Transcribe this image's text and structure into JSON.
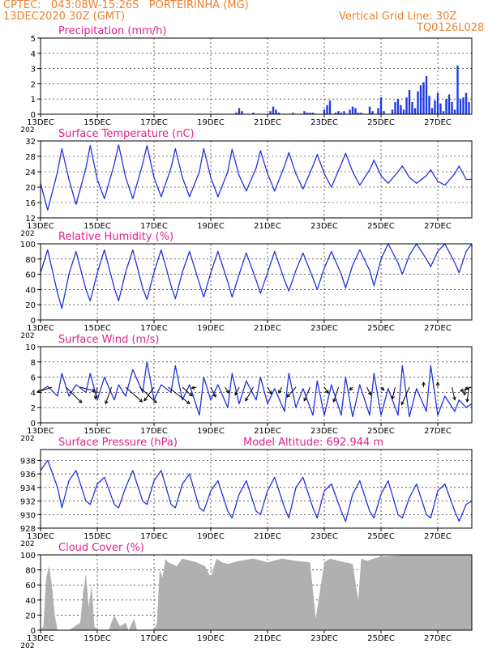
{
  "header": {
    "line1_left": "CPTEC:   043:08W-15:26S   PORTEIRINHA (MG)",
    "line2_left": "13DEC2020 30Z (GMT)",
    "line1_right": "Vertical Grid Line: 30Z",
    "line2_right": "TQ0126L028"
  },
  "colors": {
    "header": "#ee7f2d",
    "title": "#e0208a",
    "line": "#2233dd",
    "bars": "#1e3ce6",
    "cloud": "#b0b0b0",
    "arrow": "#000000"
  },
  "x_ticks": [
    "13DEC",
    "15DEC",
    "17DEC",
    "19DEC",
    "21DEC",
    "23DEC",
    "25DEC",
    "27DEC"
  ],
  "x_tick_days": [
    0,
    2,
    4,
    6,
    8,
    10,
    12,
    14
  ],
  "x_range_days": [
    0,
    15.2
  ],
  "year_fragment": "202",
  "chart_data": [
    {
      "id": "precip",
      "type": "bar",
      "title": "Precipitation (mm/h)",
      "ylim": [
        0,
        5
      ],
      "yticks": [
        0,
        1,
        2,
        3,
        4,
        5
      ],
      "grid": true,
      "days": [
        6.9,
        7.0,
        7.1,
        7.5,
        8.1,
        8.2,
        8.3,
        8.4,
        8.9,
        9.3,
        9.4,
        9.5,
        9.6,
        10.0,
        10.1,
        10.2,
        10.4,
        10.5,
        10.6,
        10.7,
        10.9,
        11.0,
        11.1,
        11.2,
        11.3,
        11.6,
        11.7,
        11.9,
        12.0,
        12.1,
        12.4,
        12.5,
        12.6,
        12.7,
        12.8,
        12.9,
        13.0,
        13.1,
        13.2,
        13.3,
        13.4,
        13.5,
        13.6,
        13.7,
        13.8,
        13.9,
        14.0,
        14.1,
        14.2,
        14.3,
        14.4,
        14.5,
        14.6,
        14.7,
        14.8,
        14.9,
        15.0,
        15.1
      ],
      "values": [
        0.1,
        0.4,
        0.2,
        0.1,
        0.2,
        0.5,
        0.3,
        0.1,
        0.1,
        0.2,
        0.1,
        0.1,
        0.1,
        0.3,
        0.6,
        0.9,
        0.1,
        0.2,
        0.1,
        0.2,
        0.3,
        0.5,
        0.4,
        0.1,
        0.1,
        0.5,
        0.2,
        0.4,
        1.1,
        0.2,
        0.3,
        0.8,
        1.0,
        0.6,
        0.3,
        1.1,
        1.6,
        0.8,
        0.4,
        1.5,
        1.9,
        2.1,
        2.5,
        1.2,
        0.4,
        0.9,
        1.4,
        0.7,
        0.2,
        1.0,
        1.3,
        0.8,
        0.3,
        3.2,
        1.0,
        1.1,
        1.4,
        0.8
      ]
    },
    {
      "id": "temp",
      "type": "line",
      "title": "Surface Temperature (nC)",
      "ylim": [
        12,
        32
      ],
      "yticks": [
        12,
        16,
        20,
        24,
        28,
        32
      ],
      "grid": true,
      "days": [
        0.0,
        0.25,
        0.6,
        0.75,
        1.0,
        1.25,
        1.6,
        1.75,
        2.0,
        2.25,
        2.6,
        2.75,
        3.0,
        3.25,
        3.6,
        3.75,
        4.0,
        4.25,
        4.6,
        4.75,
        5.0,
        5.25,
        5.6,
        5.75,
        6.0,
        6.25,
        6.6,
        6.75,
        7.0,
        7.25,
        7.6,
        7.75,
        8.0,
        8.25,
        8.6,
        8.75,
        9.0,
        9.25,
        9.6,
        9.75,
        10.0,
        10.25,
        10.6,
        10.75,
        11.0,
        11.25,
        11.6,
        11.75,
        12.0,
        12.25,
        12.6,
        12.75,
        13.0,
        13.25,
        13.6,
        13.75,
        14.0,
        14.25,
        14.6,
        14.75,
        15.0,
        15.2
      ],
      "values": [
        21.0,
        14.0,
        24.0,
        30.0,
        22.0,
        15.5,
        25.0,
        30.8,
        22.0,
        17.0,
        26.0,
        31.0,
        22.5,
        17.0,
        26.0,
        30.8,
        22.5,
        17.5,
        25.0,
        30.0,
        22.5,
        17.5,
        24.0,
        30.0,
        22.5,
        17.5,
        24.0,
        29.8,
        23.0,
        19.0,
        25.0,
        29.5,
        23.5,
        19.0,
        25.5,
        29.0,
        23.5,
        19.5,
        25.5,
        28.5,
        23.5,
        20.0,
        26.0,
        28.8,
        24.0,
        20.5,
        24.5,
        27.0,
        23.0,
        21.0,
        24.0,
        25.5,
        22.5,
        21.0,
        23.0,
        24.5,
        21.5,
        20.5,
        23.5,
        25.5,
        22.0,
        22.0
      ]
    },
    {
      "id": "rh",
      "type": "line",
      "title": "Relative Humidity (%)",
      "ylim": [
        0,
        100
      ],
      "yticks": [
        0,
        20,
        40,
        60,
        80,
        100
      ],
      "grid": true,
      "days": [
        0.0,
        0.25,
        0.6,
        0.75,
        1.0,
        1.25,
        1.6,
        1.75,
        2.0,
        2.25,
        2.6,
        2.75,
        3.0,
        3.25,
        3.6,
        3.75,
        4.0,
        4.25,
        4.6,
        4.75,
        5.0,
        5.25,
        5.6,
        5.75,
        6.0,
        6.25,
        6.6,
        6.75,
        7.0,
        7.25,
        7.6,
        7.75,
        8.0,
        8.25,
        8.6,
        8.75,
        9.0,
        9.25,
        9.6,
        9.75,
        10.0,
        10.25,
        10.6,
        10.75,
        11.0,
        11.25,
        11.6,
        11.75,
        12.0,
        12.25,
        12.6,
        12.75,
        13.0,
        13.25,
        13.6,
        13.75,
        14.0,
        14.25,
        14.6,
        14.75,
        15.0,
        15.2
      ],
      "values": [
        62.0,
        92.0,
        35.0,
        15.0,
        60.0,
        90.0,
        40.0,
        25.0,
        62.0,
        92.0,
        42.0,
        25.0,
        63.0,
        92.0,
        42.0,
        27.0,
        63.0,
        92.0,
        45.0,
        28.0,
        63.0,
        90.0,
        48.0,
        30.0,
        62.0,
        90.0,
        50.0,
        30.0,
        60.0,
        88.0,
        52.0,
        35.0,
        62.0,
        90.0,
        52.0,
        38.0,
        65.0,
        88.0,
        55.0,
        40.0,
        68.0,
        90.0,
        60.0,
        42.0,
        72.0,
        92.0,
        65.0,
        45.0,
        80.0,
        100.0,
        75.0,
        60.0,
        85.0,
        100.0,
        80.0,
        70.0,
        90.0,
        100.0,
        75.0,
        62.0,
        90.0,
        100.0
      ]
    },
    {
      "id": "wind",
      "type": "line",
      "title": "Surface Wind (m/s)",
      "ylim": [
        0,
        10
      ],
      "yticks": [
        0,
        2,
        4,
        6,
        8,
        10
      ],
      "grid": true,
      "days": [
        0.0,
        0.25,
        0.6,
        0.75,
        1.0,
        1.25,
        1.6,
        1.75,
        2.0,
        2.25,
        2.6,
        2.75,
        3.0,
        3.25,
        3.6,
        3.75,
        4.0,
        4.25,
        4.6,
        4.75,
        5.0,
        5.25,
        5.6,
        5.75,
        6.0,
        6.25,
        6.6,
        6.75,
        7.0,
        7.25,
        7.6,
        7.75,
        8.0,
        8.25,
        8.6,
        8.75,
        9.0,
        9.25,
        9.6,
        9.75,
        10.0,
        10.25,
        10.6,
        10.75,
        11.0,
        11.25,
        11.6,
        11.75,
        12.0,
        12.25,
        12.6,
        12.75,
        13.0,
        13.25,
        13.6,
        13.75,
        14.0,
        14.25,
        14.6,
        14.75,
        15.0,
        15.2
      ],
      "values": [
        4.2,
        4.8,
        3.5,
        6.5,
        3.5,
        5.0,
        4.0,
        6.5,
        3.0,
        6.0,
        3.0,
        5.0,
        3.5,
        7.0,
        4.0,
        8.0,
        3.0,
        5.0,
        4.0,
        7.5,
        3.0,
        5.0,
        1.0,
        6.0,
        3.0,
        5.0,
        2.0,
        6.5,
        2.5,
        5.5,
        3.0,
        6.0,
        2.5,
        4.5,
        1.5,
        6.5,
        2.0,
        4.5,
        1.0,
        5.5,
        1.0,
        5.0,
        1.0,
        6.0,
        0.8,
        5.0,
        1.0,
        6.5,
        1.0,
        4.5,
        1.0,
        7.5,
        0.8,
        4.5,
        1.5,
        7.5,
        1.0,
        3.5,
        1.5,
        3.0,
        2.0,
        2.5
      ],
      "arrows_u": [
        -1.5,
        1.6,
        1.5,
        -0.2,
        -0.6,
        1.7,
        1.7,
        -1.0,
        2.2,
        1.0,
        -0.5,
        0.5,
        0.4,
        -0.4,
        -0.8,
        0.4,
        -0.3,
        -0.9,
        -0.6,
        0.4,
        -0.5,
        -0.3,
        0.4,
        0.3,
        -0.3,
        -0.8,
        0.0,
        0.0,
        0.3,
        -0.2,
        -0.2,
        -0.5,
        -1.1
      ],
      "arrows_v": [
        0.5,
        1.6,
        0.4,
        1.2,
        1.7,
        1.5,
        1.6,
        1.4,
        1.7,
        0.9,
        0.1,
        1.0,
        0.6,
        0.8,
        1.4,
        0.7,
        0.6,
        1.0,
        1.4,
        0.6,
        1.5,
        0.3,
        0.8,
        0.3,
        1.2,
        1.8,
        -0.5,
        -0.5,
        1.3,
        0.8,
        1.5,
        0.2,
        0.4
      ],
      "arrows_days": [
        0.4,
        0.9,
        1.4,
        2.0,
        2.5,
        3.0,
        3.5,
        4.0,
        4.5,
        5.0,
        5.5,
        6.0,
        6.5,
        7.0,
        7.5,
        8.0,
        8.5,
        9.0,
        9.5,
        10.0,
        10.5,
        11.0,
        11.5,
        12.0,
        12.5,
        13.0,
        13.5,
        14.0,
        14.5,
        15.0,
        15.1,
        15.15,
        15.18
      ]
    },
    {
      "id": "pres",
      "type": "line",
      "title": "Surface Pressure (hPa)",
      "annotation": "Model Altitude: 692.944  m",
      "ylim": [
        928,
        939.6
      ],
      "yticks": [
        928,
        930,
        932,
        934,
        936,
        938
      ],
      "grid": true,
      "days": [
        0.0,
        0.25,
        0.6,
        0.75,
        1.0,
        1.25,
        1.6,
        1.75,
        2.0,
        2.25,
        2.6,
        2.75,
        3.0,
        3.25,
        3.6,
        3.75,
        4.0,
        4.25,
        4.6,
        4.75,
        5.0,
        5.25,
        5.6,
        5.75,
        6.0,
        6.25,
        6.6,
        6.75,
        7.0,
        7.25,
        7.6,
        7.75,
        8.0,
        8.25,
        8.6,
        8.75,
        9.0,
        9.25,
        9.6,
        9.75,
        10.0,
        10.25,
        10.6,
        10.75,
        11.0,
        11.25,
        11.6,
        11.75,
        12.0,
        12.25,
        12.6,
        12.75,
        13.0,
        13.25,
        13.6,
        13.75,
        14.0,
        14.25,
        14.6,
        14.75,
        15.0,
        15.2
      ],
      "values": [
        936.5,
        938.0,
        934.0,
        931.0,
        935.0,
        936.5,
        932.0,
        931.5,
        934.5,
        935.5,
        931.5,
        931.0,
        934.0,
        936.5,
        932.0,
        931.5,
        935.0,
        936.5,
        931.5,
        931.0,
        934.5,
        936.0,
        931.0,
        930.5,
        933.5,
        935.0,
        930.5,
        929.5,
        933.0,
        935.0,
        930.5,
        930.0,
        933.5,
        935.5,
        931.0,
        929.5,
        934.0,
        935.5,
        931.0,
        929.5,
        933.5,
        934.5,
        930.5,
        929.0,
        933.0,
        935.0,
        930.5,
        929.5,
        933.0,
        935.0,
        930.0,
        929.5,
        932.5,
        934.5,
        930.0,
        929.5,
        933.5,
        934.5,
        930.5,
        929.0,
        931.5,
        932.0
      ]
    },
    {
      "id": "cloud",
      "type": "area",
      "title": "Cloud Cover (%)",
      "ylim": [
        0,
        100
      ],
      "yticks": [
        0,
        20,
        40,
        60,
        80,
        100
      ],
      "grid": true,
      "days": [
        0.0,
        0.1,
        0.2,
        0.3,
        0.4,
        0.5,
        0.6,
        1.0,
        1.4,
        1.5,
        1.6,
        1.7,
        1.8,
        1.9,
        2.0,
        2.4,
        2.6,
        2.8,
        3.0,
        3.1,
        3.3,
        3.4,
        3.6,
        3.9,
        4.0,
        4.1,
        4.2,
        4.3,
        4.4,
        4.5,
        4.8,
        5.0,
        5.5,
        5.8,
        6.0,
        6.2,
        6.4,
        6.6,
        7.0,
        7.5,
        8.0,
        8.5,
        9.0,
        9.5,
        9.7,
        10.0,
        10.2,
        10.5,
        11.0,
        11.2,
        11.3,
        11.5,
        12.0,
        12.5,
        13.0,
        13.5,
        14.0,
        14.5,
        15.0,
        15.2
      ],
      "values": [
        0,
        5,
        70,
        85,
        60,
        20,
        0,
        0,
        10,
        50,
        75,
        30,
        60,
        5,
        0,
        0,
        20,
        5,
        10,
        0,
        15,
        0,
        0,
        0,
        0,
        10,
        80,
        70,
        95,
        90,
        85,
        95,
        90,
        85,
        70,
        95,
        90,
        88,
        92,
        95,
        90,
        95,
        92,
        90,
        15,
        90,
        95,
        92,
        88,
        40,
        95,
        92,
        98,
        99,
        100,
        100,
        100,
        100,
        100,
        100
      ]
    }
  ]
}
